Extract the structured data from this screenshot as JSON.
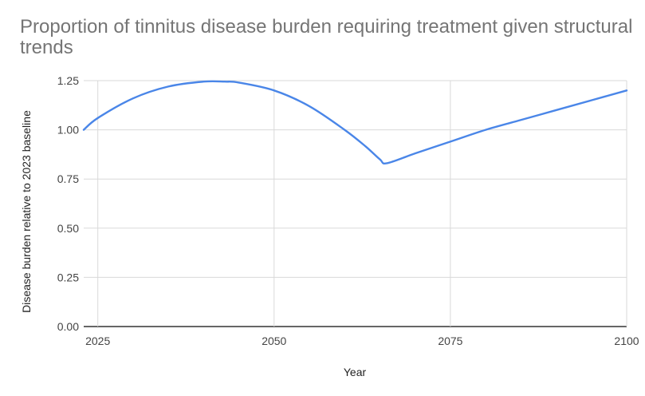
{
  "chart_data": {
    "type": "line",
    "title": "Proportion of tinnitus disease burden requiring treatment given structural trends",
    "xlabel": "Year",
    "ylabel": "Disease burden relative to 2023 baseline",
    "xlim": [
      2023,
      2100
    ],
    "ylim": [
      0,
      1.25
    ],
    "x_ticks": [
      "2025",
      "2050",
      "2075",
      "2100"
    ],
    "y_ticks": [
      "0.00",
      "0.25",
      "0.50",
      "0.75",
      "1.00",
      "1.25"
    ],
    "grid": true,
    "legend": "none",
    "series": [
      {
        "color": "#4a86e8",
        "x": [
          2023,
          2025,
          2030,
          2035,
          2040,
          2043,
          2045,
          2050,
          2055,
          2060,
          2063,
          2065,
          2066,
          2070,
          2075,
          2080,
          2085,
          2090,
          2095,
          2100
        ],
        "y": [
          1.0,
          1.06,
          1.16,
          1.22,
          1.245,
          1.245,
          1.24,
          1.2,
          1.12,
          1.0,
          0.915,
          0.85,
          0.83,
          0.88,
          0.94,
          1.0,
          1.05,
          1.1,
          1.15,
          1.2
        ]
      }
    ]
  }
}
